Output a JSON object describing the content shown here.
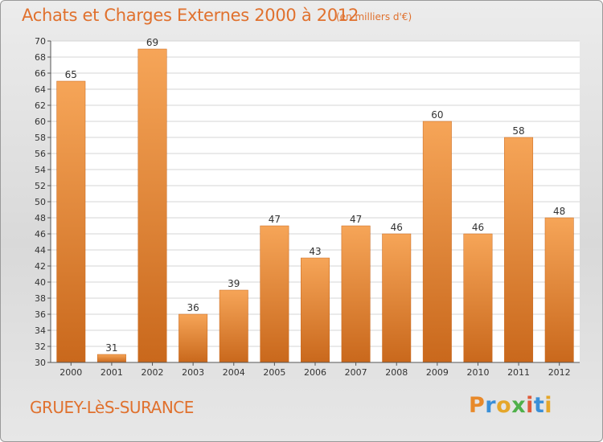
{
  "chart_data": {
    "type": "bar",
    "title": "Achats et Charges Externes 2000 à 2012",
    "subtitle": "(en milliers d'€)",
    "categories": [
      "2000",
      "2001",
      "2002",
      "2003",
      "2004",
      "2005",
      "2006",
      "2007",
      "2008",
      "2009",
      "2010",
      "2011",
      "2012"
    ],
    "values": [
      65,
      31,
      69,
      36,
      39,
      47,
      43,
      47,
      46,
      60,
      46,
      58,
      48
    ],
    "ylim": [
      30,
      70
    ],
    "ytick_step": 2,
    "grid": true,
    "bar_color": "#f0913e",
    "bar_color_dark": "#c8661a"
  },
  "footer": {
    "commune": "GRUEY-LèS-SURANCE",
    "logo": [
      "P",
      "r",
      "o",
      "x",
      "i",
      "t",
      "i"
    ]
  }
}
